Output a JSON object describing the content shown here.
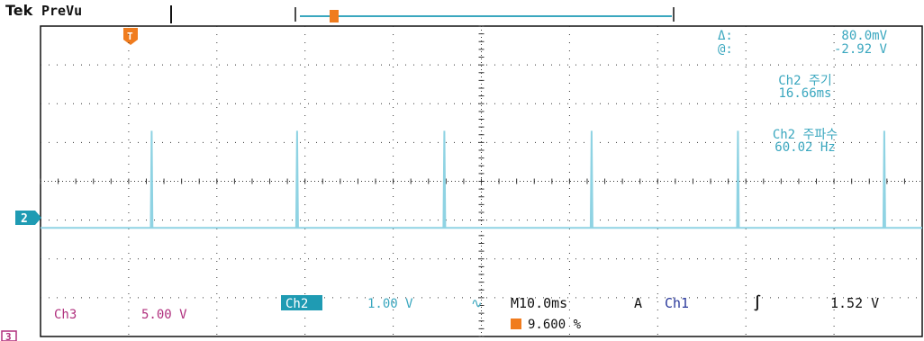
{
  "header": {
    "brand": "Tek",
    "mode": "PreVu"
  },
  "measurements": {
    "delta_label": "Δ:",
    "delta_value": "80.0mV",
    "at_label": "@:",
    "at_value": "-2.92 V",
    "period_label": "Ch2 주기",
    "period_value": "16.66ms",
    "freq_label": "Ch2 주파수",
    "freq_value": "60.02 Hz"
  },
  "markers": {
    "trigger_marker": "T",
    "ch2_marker": "2",
    "ch3_marker": "3"
  },
  "status": {
    "ch3_label": "Ch3",
    "ch3_scale": "5.00 V",
    "ch2_label": "Ch2",
    "ch2_scale": "1.00 V",
    "ch2_coupling": "∿",
    "timebase": "M10.0ms",
    "trigger_mode": "A",
    "trigger_source": "Ch1",
    "trigger_slope": "∫",
    "trigger_level": "1.52 V",
    "trigger_position": "9.600 %"
  },
  "colors": {
    "trace": "#8fd3e3",
    "readout": "#3aa7bf",
    "ch3": "#b0307e",
    "ch1": "#2b3a9c",
    "ch2_badge": "#1f9bb3",
    "trigger": "#f07c1e",
    "grid": "#333333"
  },
  "chart_data": {
    "type": "line",
    "title": "",
    "xlabel": "",
    "ylabel": "",
    "series": [
      {
        "x_divisions": [
          0,
          1.25,
          1.26,
          1.27,
          2.9,
          2.91,
          2.92,
          4.57,
          4.58,
          4.59,
          6.24,
          6.25,
          6.26,
          7.9,
          7.91,
          7.92,
          9.56,
          9.57,
          9.58,
          10
        ],
        "y_divisions": [
          0,
          0,
          2.5,
          0,
          0,
          2.5,
          0,
          0,
          2.5,
          0,
          0,
          2.5,
          0,
          0,
          2.5,
          0,
          0,
          2.5,
          0,
          0
        ]
      }
    ],
    "x_range_div": [
      0,
      10
    ],
    "y_range_div": [
      -4,
      4
    ],
    "grid": true
  }
}
